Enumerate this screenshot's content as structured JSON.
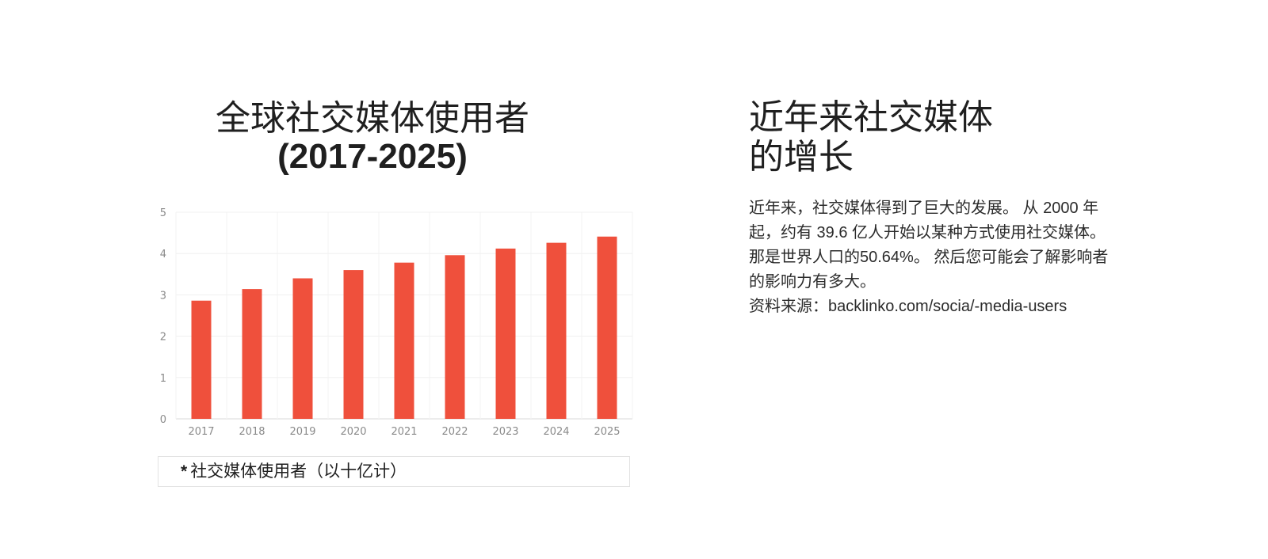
{
  "chart_data": {
    "type": "bar",
    "title": "全球社交媒体使用者",
    "subtitle": "(2017-2025)",
    "categories": [
      "2017",
      "2018",
      "2019",
      "2020",
      "2021",
      "2022",
      "2023",
      "2024",
      "2025"
    ],
    "values": [
      2.86,
      3.14,
      3.4,
      3.6,
      3.78,
      3.96,
      4.12,
      4.26,
      4.41
    ],
    "yticks": [
      "0",
      "1",
      "2",
      "3",
      "4",
      "5"
    ],
    "ylim": [
      0,
      5
    ],
    "grid": true,
    "bar_color": "#ef503c",
    "legend": "社交媒体使用者（以十亿计）",
    "legend_marker": "*"
  },
  "side": {
    "heading_line1": "近年来社交媒体",
    "heading_line2": "的增长",
    "body_line1": "近年来，社交媒体得到了巨大的发展。 从 2000 年",
    "body_line2": "起，约有 39.6 亿人开始以某种方式使用社交媒体。",
    "body_line3": "那是世界人口的50.64%。 然后您可能会了解影响者",
    "body_line4": "的影响力有多大。",
    "source": "资料来源：backlinko.com/socia/-media-users"
  }
}
